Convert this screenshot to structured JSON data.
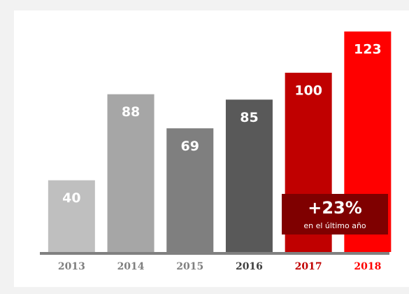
{
  "chart_data": {
    "type": "bar",
    "categories": [
      "2013",
      "2014",
      "2015",
      "2016",
      "2017",
      "2018"
    ],
    "values": [
      40,
      88,
      69,
      85,
      100,
      123
    ],
    "colors": [
      "#bfbfbf",
      "#a6a6a6",
      "#7f7f7f",
      "#595959",
      "#c00000",
      "#ff0000"
    ],
    "category_label_colors": [
      "#7f7f7f",
      "#7f7f7f",
      "#7f7f7f",
      "#404040",
      "#c00000",
      "#ff0000"
    ],
    "annotation": {
      "text": "+23%",
      "subtext": "en el último año",
      "color": "#7f0000"
    }
  }
}
